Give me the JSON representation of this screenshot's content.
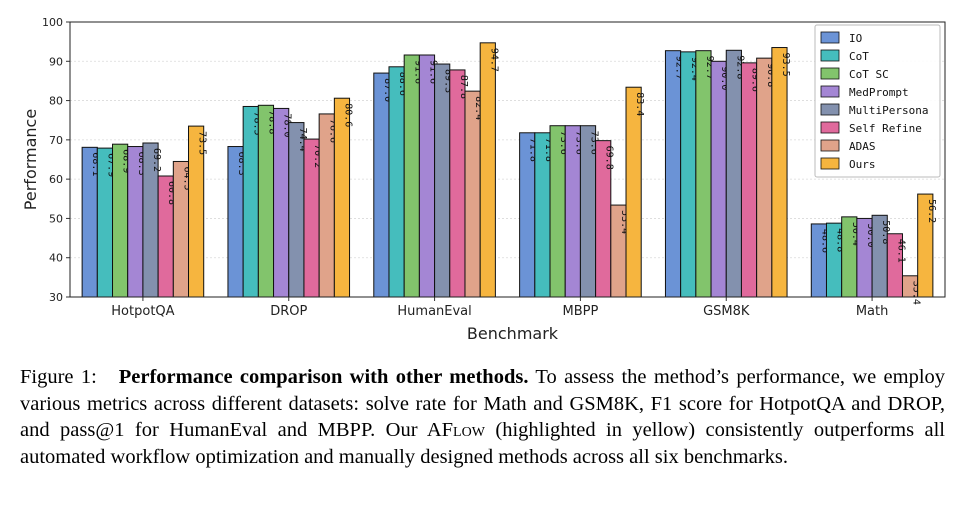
{
  "chart_data": {
    "type": "bar",
    "title": "",
    "xlabel": "Benchmark",
    "ylabel": "Performance",
    "ylim": [
      30,
      100
    ],
    "yticks": [
      30,
      40,
      50,
      60,
      70,
      80,
      90,
      100
    ],
    "grid": true,
    "legend_position": "top-right",
    "categories": [
      "HotpotQA",
      "DROP",
      "HumanEval",
      "MBPP",
      "GSM8K",
      "Math"
    ],
    "series": [
      {
        "name": "IO",
        "color": "#6b93d6",
        "values": [
          68.1,
          68.3,
          87.0,
          71.8,
          92.7,
          48.6
        ]
      },
      {
        "name": "CoT",
        "color": "#45bdbd",
        "values": [
          67.9,
          78.5,
          88.6,
          71.8,
          92.4,
          48.8
        ]
      },
      {
        "name": "CoT SC",
        "color": "#82c46c",
        "values": [
          68.9,
          78.8,
          91.6,
          73.6,
          92.7,
          50.4
        ]
      },
      {
        "name": "MedPrompt",
        "color": "#a486d4",
        "values": [
          68.3,
          78.0,
          91.6,
          73.6,
          90.0,
          50.0
        ]
      },
      {
        "name": "MultiPersona",
        "color": "#8391ae",
        "values": [
          69.2,
          74.4,
          89.3,
          73.6,
          92.8,
          50.8
        ]
      },
      {
        "name": "Self Refine",
        "color": "#e06a9c",
        "values": [
          60.8,
          70.2,
          87.8,
          69.8,
          89.6,
          46.1
        ]
      },
      {
        "name": "ADAS",
        "color": "#e0a38a",
        "values": [
          64.5,
          76.6,
          82.4,
          53.4,
          90.8,
          35.4
        ]
      },
      {
        "name": "Ours",
        "color": "#f6b53f",
        "values": [
          73.5,
          80.6,
          94.7,
          83.4,
          93.5,
          56.2
        ]
      }
    ]
  },
  "caption": {
    "label": "Figure 1:",
    "bold_title": "Performance comparison with other methods.",
    "text_1": "To assess the method’s performance, we employ various metrics across different datasets: solve rate for Math and GSM8K, F1 score for HotpotQA and DROP, and pass@1 for HumanEval and MBPP. Our A",
    "method_smallcaps": "Flow",
    "text_2": "(highlighted in yellow) consistently outperforms all automated workflow optimization and manually designed methods across all six benchmarks."
  }
}
